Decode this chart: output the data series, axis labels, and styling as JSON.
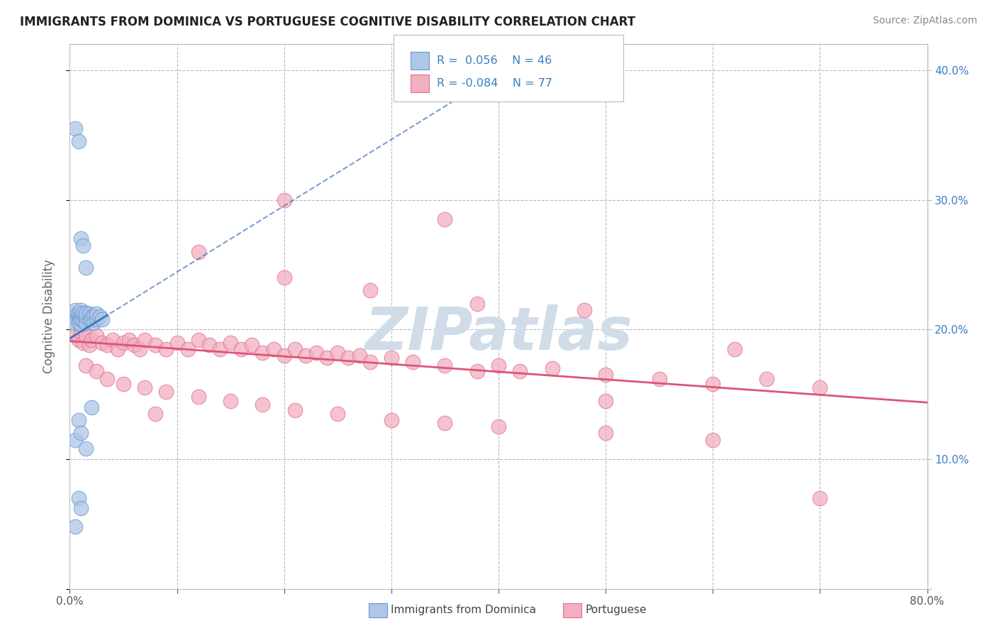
{
  "title": "IMMIGRANTS FROM DOMINICA VS PORTUGUESE COGNITIVE DISABILITY CORRELATION CHART",
  "source": "Source: ZipAtlas.com",
  "ylabel": "Cognitive Disability",
  "xlim": [
    0.0,
    0.8
  ],
  "ylim": [
    0.0,
    0.42
  ],
  "dominica_R": 0.056,
  "dominica_N": 46,
  "portuguese_R": -0.084,
  "portuguese_N": 77,
  "dominica_color": "#aec6e8",
  "dominica_edge": "#6699cc",
  "portuguese_color": "#f2afc0",
  "portuguese_edge": "#e07090",
  "trend_dominica_color": "#4477bb",
  "trend_portuguese_color": "#dd5577",
  "background_color": "#ffffff",
  "grid_color": "#bbbbbb",
  "watermark_color": "#d0dce8",
  "legend_text_color": "#3a7fc1",
  "dominica_x": [
    0.005,
    0.005,
    0.005,
    0.005,
    0.005,
    0.008,
    0.008,
    0.008,
    0.008,
    0.01,
    0.01,
    0.01,
    0.01,
    0.01,
    0.01,
    0.012,
    0.012,
    0.012,
    0.015,
    0.015,
    0.015,
    0.015,
    0.015,
    0.018,
    0.018,
    0.02,
    0.02,
    0.022,
    0.022,
    0.025,
    0.025,
    0.028,
    0.03,
    0.005,
    0.008,
    0.01,
    0.012,
    0.015,
    0.005,
    0.008,
    0.01,
    0.015,
    0.02,
    0.008,
    0.01,
    0.005
  ],
  "dominica_y": [
    0.212,
    0.21,
    0.208,
    0.205,
    0.215,
    0.21,
    0.207,
    0.213,
    0.205,
    0.21,
    0.207,
    0.204,
    0.212,
    0.215,
    0.208,
    0.21,
    0.207,
    0.213,
    0.212,
    0.208,
    0.205,
    0.21,
    0.213,
    0.208,
    0.212,
    0.21,
    0.207,
    0.21,
    0.205,
    0.208,
    0.212,
    0.21,
    0.208,
    0.355,
    0.345,
    0.27,
    0.265,
    0.248,
    0.115,
    0.13,
    0.12,
    0.108,
    0.14,
    0.07,
    0.062,
    0.048
  ],
  "portuguese_x": [
    0.005,
    0.008,
    0.01,
    0.012,
    0.015,
    0.018,
    0.02,
    0.025,
    0.03,
    0.035,
    0.04,
    0.045,
    0.05,
    0.055,
    0.06,
    0.065,
    0.07,
    0.08,
    0.09,
    0.1,
    0.11,
    0.12,
    0.13,
    0.14,
    0.15,
    0.16,
    0.17,
    0.18,
    0.19,
    0.2,
    0.21,
    0.22,
    0.23,
    0.24,
    0.25,
    0.26,
    0.27,
    0.28,
    0.3,
    0.32,
    0.35,
    0.38,
    0.4,
    0.42,
    0.45,
    0.5,
    0.55,
    0.6,
    0.65,
    0.7,
    0.015,
    0.025,
    0.035,
    0.05,
    0.07,
    0.09,
    0.12,
    0.15,
    0.18,
    0.21,
    0.25,
    0.3,
    0.35,
    0.4,
    0.5,
    0.6,
    0.12,
    0.2,
    0.28,
    0.38,
    0.48,
    0.2,
    0.35,
    0.5,
    0.62,
    0.7,
    0.08
  ],
  "portuguese_y": [
    0.195,
    0.192,
    0.198,
    0.19,
    0.195,
    0.188,
    0.192,
    0.195,
    0.19,
    0.188,
    0.192,
    0.185,
    0.19,
    0.192,
    0.188,
    0.185,
    0.192,
    0.188,
    0.185,
    0.19,
    0.185,
    0.192,
    0.188,
    0.185,
    0.19,
    0.185,
    0.188,
    0.182,
    0.185,
    0.18,
    0.185,
    0.18,
    0.182,
    0.178,
    0.182,
    0.178,
    0.18,
    0.175,
    0.178,
    0.175,
    0.172,
    0.168,
    0.172,
    0.168,
    0.17,
    0.165,
    0.162,
    0.158,
    0.162,
    0.155,
    0.172,
    0.168,
    0.162,
    0.158,
    0.155,
    0.152,
    0.148,
    0.145,
    0.142,
    0.138,
    0.135,
    0.13,
    0.128,
    0.125,
    0.12,
    0.115,
    0.26,
    0.24,
    0.23,
    0.22,
    0.215,
    0.3,
    0.285,
    0.145,
    0.185,
    0.07,
    0.135
  ]
}
